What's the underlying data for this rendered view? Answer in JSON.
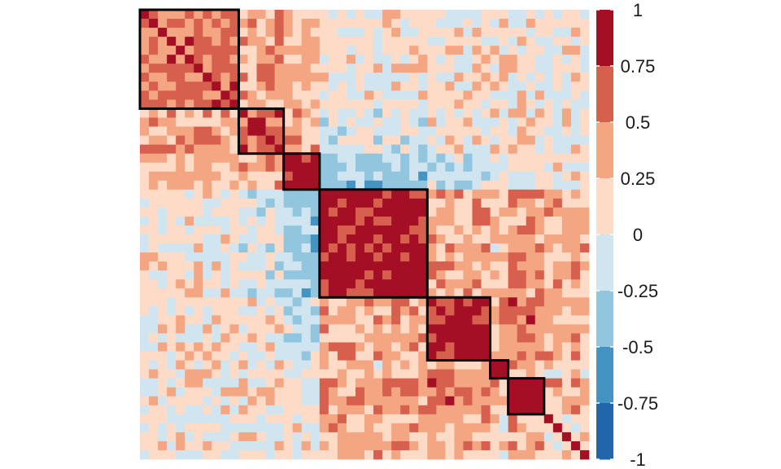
{
  "chart_data": {
    "type": "heatmap",
    "title": "",
    "xlabel": "",
    "ylabel": "",
    "n": 50,
    "value_range": [
      -1,
      1
    ],
    "colorbar": {
      "position": "right",
      "ticks": [
        "1",
        "0.75",
        "0.5",
        "0.25",
        "0",
        "-0.25",
        "-0.5",
        "-0.75",
        "-1"
      ],
      "bins": [
        {
          "from": 0.75,
          "to": 1,
          "color": "#a50f26"
        },
        {
          "from": 0.5,
          "to": 0.75,
          "color": "#d6604d"
        },
        {
          "from": 0.25,
          "to": 0.5,
          "color": "#f4a582"
        },
        {
          "from": 0,
          "to": 0.25,
          "color": "#fddbc7"
        },
        {
          "from": -0.25,
          "to": 0,
          "color": "#d1e5f0"
        },
        {
          "from": -0.5,
          "to": -0.25,
          "color": "#92c5de"
        },
        {
          "from": -0.75,
          "to": -0.5,
          "color": "#4393c3"
        },
        {
          "from": -1,
          "to": -0.75,
          "color": "#2166ac"
        }
      ]
    },
    "clusters": [
      {
        "start": 0,
        "end": 10
      },
      {
        "start": 11,
        "end": 15
      },
      {
        "start": 16,
        "end": 19
      },
      {
        "start": 20,
        "end": 31
      },
      {
        "start": 32,
        "end": 38
      },
      {
        "start": 39,
        "end": 40
      },
      {
        "start": 41,
        "end": 44
      }
    ],
    "block_levels": [
      [
        0.55,
        0.35,
        0.25,
        0.05,
        0.1,
        0.1,
        0.1
      ],
      [
        0.35,
        0.7,
        0.35,
        -0.1,
        0.05,
        0.15,
        0.15
      ],
      [
        0.25,
        0.35,
        0.85,
        -0.3,
        -0.2,
        0.0,
        0.0
      ],
      [
        0.05,
        -0.1,
        -0.3,
        0.9,
        0.35,
        0.2,
        0.45
      ],
      [
        0.1,
        0.05,
        -0.2,
        0.35,
        0.85,
        0.3,
        0.55
      ],
      [
        0.1,
        0.15,
        0.0,
        0.2,
        0.3,
        0.95,
        0.3
      ],
      [
        0.1,
        0.15,
        0.0,
        0.45,
        0.55,
        0.3,
        0.95
      ]
    ]
  }
}
